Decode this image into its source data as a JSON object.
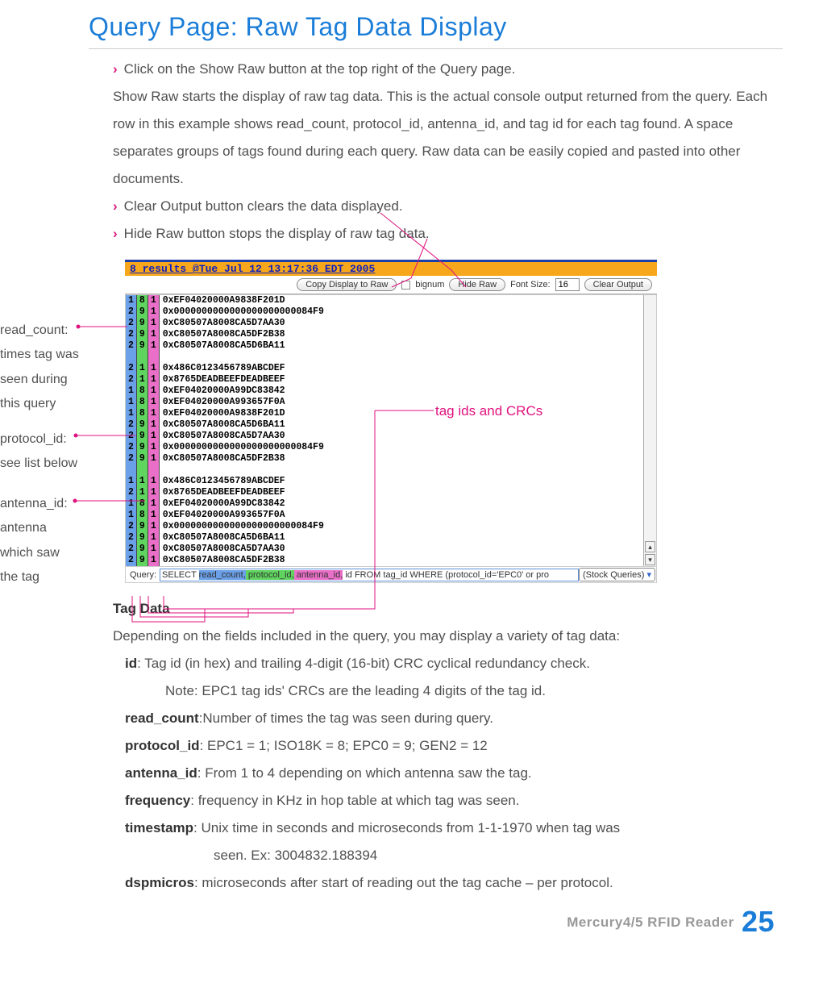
{
  "title": "Query Page: Raw Tag Data Display",
  "bullets": [
    "Click on the Show Raw button at the top right of the Query page.",
    "Clear Output button clears the data displayed.",
    "Hide Raw button stops the display of raw tag data."
  ],
  "intro": "Show Raw starts the display of raw tag data. This is the actual  console output returned from the query. Each row in this example shows read_count, protocol_id, antenna_id, and tag id for each tag found.  A space separates groups of tags found during each query. Raw data can be easily copied and pasted into other documents.",
  "callouts": {
    "read_count": "read_count:\ntimes tag was seen during this query",
    "protocol_id": "protocol_id:\nsee list below",
    "antenna_id": "antenna_id:\nantenna which saw the tag",
    "tag_ids": "tag ids and CRCs"
  },
  "screenshot": {
    "header": "8 results @Tue Jul 12 13:17:36 EDT 2005",
    "toolbar": {
      "copy_btn": "Copy Display to Raw",
      "bignum_label": "bignum",
      "hide_raw_btn": "Hide Raw",
      "fontsize_label": "Font Size:",
      "fontsize_value": "16",
      "clear_btn": "Clear Output"
    },
    "rows": [
      {
        "rc": "1",
        "pi": "8",
        "ai": "1",
        "tag": "0xEF04020000A9838F201D"
      },
      {
        "rc": "2",
        "pi": "9",
        "ai": "1",
        "tag": "0x0000000000000000000000084F9"
      },
      {
        "rc": "2",
        "pi": "9",
        "ai": "1",
        "tag": "0xC80507A8008CA5D7AA30"
      },
      {
        "rc": "2",
        "pi": "9",
        "ai": "1",
        "tag": "0xC80507A8008CA5DF2B38"
      },
      {
        "rc": "2",
        "pi": "9",
        "ai": "1",
        "tag": "0xC80507A8008CA5D6BA11"
      },
      {
        "rc": "",
        "pi": "",
        "ai": "",
        "tag": ""
      },
      {
        "rc": "2",
        "pi": "1",
        "ai": "1",
        "tag": "0x486C0123456789ABCDEF"
      },
      {
        "rc": "2",
        "pi": "1",
        "ai": "1",
        "tag": "0x8765DEADBEEFDEADBEEF"
      },
      {
        "rc": "1",
        "pi": "8",
        "ai": "1",
        "tag": "0xEF04020000A99DC83842"
      },
      {
        "rc": "1",
        "pi": "8",
        "ai": "1",
        "tag": "0xEF04020000A993657F0A"
      },
      {
        "rc": "1",
        "pi": "8",
        "ai": "1",
        "tag": "0xEF04020000A9838F201D"
      },
      {
        "rc": "2",
        "pi": "9",
        "ai": "1",
        "tag": "0xC80507A8008CA5D6BA11"
      },
      {
        "rc": "2",
        "pi": "9",
        "ai": "1",
        "tag": "0xC80507A8008CA5D7AA30"
      },
      {
        "rc": "2",
        "pi": "9",
        "ai": "1",
        "tag": "0x0000000000000000000000084F9"
      },
      {
        "rc": "2",
        "pi": "9",
        "ai": "1",
        "tag": "0xC80507A8008CA5DF2B38"
      },
      {
        "rc": "",
        "pi": "",
        "ai": "",
        "tag": ""
      },
      {
        "rc": "1",
        "pi": "1",
        "ai": "1",
        "tag": "0x486C0123456789ABCDEF"
      },
      {
        "rc": "2",
        "pi": "1",
        "ai": "1",
        "tag": "0x8765DEADBEEFDEADBEEF"
      },
      {
        "rc": "1",
        "pi": "8",
        "ai": "1",
        "tag": "0xEF04020000A99DC83842"
      },
      {
        "rc": "1",
        "pi": "8",
        "ai": "1",
        "tag": "0xEF04020000A993657F0A"
      },
      {
        "rc": "2",
        "pi": "9",
        "ai": "1",
        "tag": "0x0000000000000000000000084F9"
      },
      {
        "rc": "2",
        "pi": "9",
        "ai": "1",
        "tag": "0xC80507A8008CA5D6BA11"
      },
      {
        "rc": "2",
        "pi": "9",
        "ai": "1",
        "tag": "0xC80507A8008CA5D7AA30"
      },
      {
        "rc": "2",
        "pi": "9",
        "ai": "1",
        "tag": "0xC80507A8008CA5DF2B38"
      }
    ],
    "query_label": "Query:",
    "query_text_prefix": "SELECT ",
    "query_hl1": "read_count,",
    "query_hl2": " protocol_id,",
    "query_hl3": " antenna_id,",
    "query_text_suffix": " id FROM tag_id WHERE (protocol_id='EPC0' or pro",
    "stock_queries": "(Stock Queries)"
  },
  "tag_data_heading": "Tag Data",
  "tag_data_intro": "Depending on the fields included in the query, you may display a variety of tag data:",
  "fields": [
    {
      "name": "id",
      "sep": ":   ",
      "desc": "Tag id (in hex) and trailing 4-digit (16-bit) CRC cyclical redundancy check."
    },
    {
      "name": "",
      "sep": "",
      "desc": "Note: EPC1 tag ids' CRCs are the leading 4 digits of the tag id."
    },
    {
      "name": "read_count",
      "sep": ":",
      "desc": "Number of times the tag was seen during query."
    },
    {
      "name": "protocol_id",
      "sep": ": ",
      "desc": "EPC1 = 1; ISO18K = 8; EPC0 = 9; GEN2 = 12"
    },
    {
      "name": "antenna_id",
      "sep": ": ",
      "desc": "From 1 to 4 depending on which antenna saw the tag."
    },
    {
      "name": "frequency",
      "sep": ":   ",
      "desc": "frequency in KHz  in hop table at which tag was seen."
    },
    {
      "name": "timestamp",
      "sep": ": ",
      "desc": "Unix time in seconds and microseconds from 1-1-1970 when tag was"
    },
    {
      "name": "",
      "sep": "",
      "desc": "seen. Ex: 3004832.188394"
    },
    {
      "name": "dspmicros",
      "sep": ": ",
      "desc": "microseconds after start of reading out the tag cache – per protocol."
    }
  ],
  "footer_text": "Mercury4/5 RFID Reader",
  "page_number": "25",
  "colors": {
    "accent_pink": "#e0127f",
    "accent_blue": "#1a7dd8",
    "stripe_blue": "#6aa0e8",
    "stripe_green": "#5fd45f",
    "stripe_pink": "#ea6fc8"
  }
}
